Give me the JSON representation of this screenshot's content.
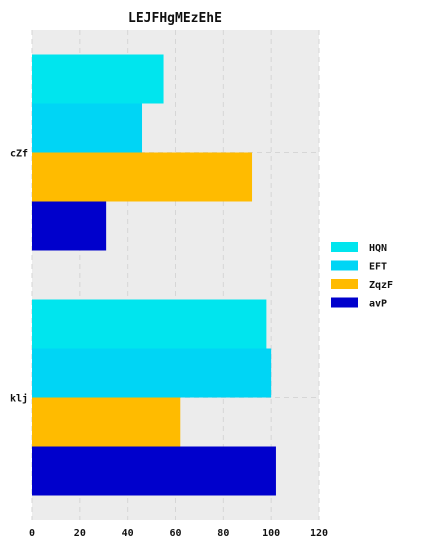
{
  "chart_data": {
    "type": "bar",
    "orientation": "horizontal",
    "title": "LEJFHgMEzEhE",
    "xlabel": "",
    "ylabel": "",
    "categories": [
      "cZf",
      "klj"
    ],
    "series": [
      {
        "name": "HQN",
        "values": [
          55,
          98
        ],
        "color": "#00e5ee"
      },
      {
        "name": "EFT",
        "values": [
          46,
          100
        ],
        "color": "#00d5f5"
      },
      {
        "name": "ZqzF",
        "values": [
          92,
          62
        ],
        "color": "#ffbb00"
      },
      {
        "name": "avP",
        "values": [
          31,
          102
        ],
        "color": "#0000cc"
      }
    ],
    "xlim": [
      0,
      120
    ],
    "xticks": [
      0,
      20,
      40,
      60,
      80,
      100,
      120
    ],
    "grid": true,
    "legend_position": "right"
  }
}
